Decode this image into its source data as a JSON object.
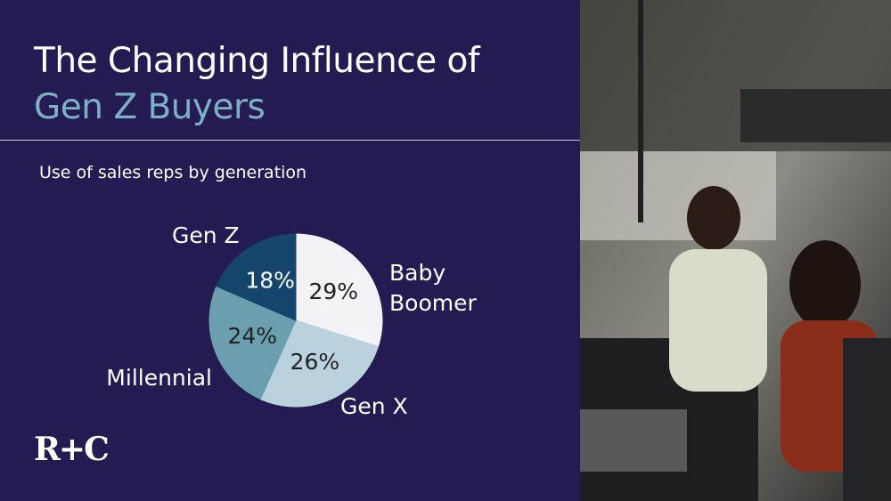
{
  "header": {
    "title": "The Changing Influence of",
    "highlight": "Gen Z Buyers"
  },
  "chart_data": {
    "type": "pie",
    "subtitle": "Use of sales reps by generation",
    "categories": [
      "Baby Boomer",
      "Gen X",
      "Millennial",
      "Gen Z"
    ],
    "values": [
      29,
      26,
      24,
      18
    ],
    "value_labels": [
      "29%",
      "26%",
      "24%",
      "18%"
    ],
    "colors": [
      "#f3f2f6",
      "#b9d2de",
      "#6b9fb0",
      "#15456c"
    ]
  },
  "logo": "R+C"
}
